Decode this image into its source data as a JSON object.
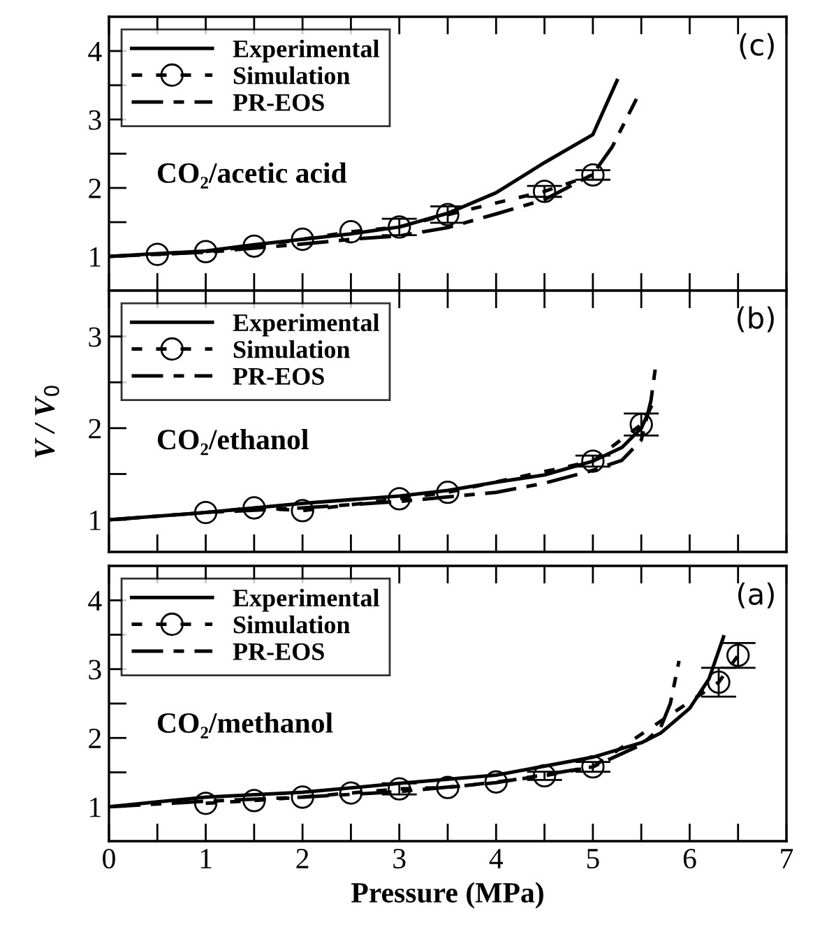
{
  "chart_data": [
    {
      "type": "line",
      "annotations": [
        "(c)",
        "CO₂/acetic acid"
      ],
      "legend": "top left",
      "tick_labels": "y",
      "grid": false,
      "xlim": [
        0,
        7
      ],
      "xticks": [
        {
          "value": 0,
          "label": null
        },
        {
          "value": 0.5,
          "label": null
        },
        {
          "value": 1,
          "label": null
        },
        {
          "value": 1.5,
          "label": null
        },
        {
          "value": 2,
          "label": null
        },
        {
          "value": 2.5,
          "label": null
        },
        {
          "value": 3,
          "label": null
        },
        {
          "value": 3.5,
          "label": null
        },
        {
          "value": 4,
          "label": null
        },
        {
          "value": 4.5,
          "label": null
        },
        {
          "value": 5,
          "label": null
        },
        {
          "value": 5.5,
          "label": null
        },
        {
          "value": 6,
          "label": null
        },
        {
          "value": 6.5,
          "label": null
        },
        {
          "value": 7,
          "label": null
        }
      ],
      "ylim": [
        0.5,
        4.5
      ],
      "yticks": [
        1,
        {
          "value": 1.5,
          "label": null
        },
        2,
        {
          "value": 2.5,
          "label": null
        },
        3,
        {
          "value": 3.5,
          "label": null
        },
        4
      ],
      "series": [
        {
          "name": "Experimental",
          "color": "#000000",
          "line_style": "solid",
          "marker": "none",
          "x": [
            0,
            1,
            1.5,
            2,
            2.5,
            3,
            3.5,
            4,
            4.5,
            5,
            5.25
          ],
          "values": [
            1,
            1.08,
            1.17,
            1.25,
            1.33,
            1.43,
            1.63,
            1.93,
            2.37,
            2.78,
            3.57
          ]
        },
        {
          "name": "Simulation",
          "color": "#000000",
          "line_style": "dotted",
          "marker": "circle",
          "x": [
            0.5,
            1,
            1.5,
            2,
            2.5,
            3,
            3.5,
            4.5,
            5
          ],
          "values": [
            1.03,
            1.07,
            1.15,
            1.25,
            1.36,
            1.43,
            1.61,
            1.95,
            2.19
          ],
          "errors": [
            null,
            null,
            null,
            null,
            null,
            0.12,
            0.12,
            0.08,
            0.07
          ]
        },
        {
          "name": "PR-EOS",
          "color": "#000000",
          "line_style": "dashed",
          "marker": "none",
          "x": [
            0,
            1,
            2,
            2.5,
            3,
            3.5,
            4,
            4.5,
            5,
            5.2,
            5.45
          ],
          "values": [
            1,
            1.06,
            1.18,
            1.25,
            1.3,
            1.42,
            1.62,
            1.83,
            2.2,
            2.6,
            3.3
          ]
        }
      ]
    },
    {
      "type": "line",
      "annotations": [
        "(b)",
        "CO₂/ethanol"
      ],
      "legend": "top left",
      "tick_labels": "y",
      "grid": false,
      "ylabel": "V / V$_{0}$",
      "xlim": [
        0,
        7
      ],
      "xticks": [
        {
          "value": 0,
          "label": null
        },
        {
          "value": 0.5,
          "label": null
        },
        {
          "value": 1,
          "label": null
        },
        {
          "value": 1.5,
          "label": null
        },
        {
          "value": 2,
          "label": null
        },
        {
          "value": 2.5,
          "label": null
        },
        {
          "value": 3,
          "label": null
        },
        {
          "value": 3.5,
          "label": null
        },
        {
          "value": 4,
          "label": null
        },
        {
          "value": 4.5,
          "label": null
        },
        {
          "value": 5,
          "label": null
        },
        {
          "value": 5.5,
          "label": null
        },
        {
          "value": 6,
          "label": null
        },
        {
          "value": 6.5,
          "label": null
        },
        {
          "value": 7,
          "label": null
        }
      ],
      "ylim": [
        0.65,
        3.5
      ],
      "yticks": [
        1,
        {
          "value": 1.5,
          "label": null
        },
        2,
        {
          "value": 2.5,
          "label": null
        },
        3
      ],
      "series": [
        {
          "name": "Experimental",
          "color": "#000000",
          "line_style": "solid",
          "marker": "none",
          "x": [
            0,
            1,
            2,
            3,
            3.5,
            4,
            4.5,
            5,
            5.3,
            5.5,
            5.6
          ],
          "values": [
            1,
            1.08,
            1.18,
            1.26,
            1.32,
            1.41,
            1.49,
            1.64,
            1.79,
            2.0,
            2.23
          ]
        },
        {
          "name": "Simulation",
          "color": "#000000",
          "line_style": "dotted",
          "marker": "circle",
          "x": [
            1,
            1.5,
            2,
            3,
            3.5,
            5,
            5.5
          ],
          "values": [
            1.08,
            1.13,
            1.1,
            1.23,
            1.3,
            1.64,
            2.04
          ],
          "errors": [
            null,
            null,
            null,
            null,
            null,
            0.06,
            0.12
          ]
        },
        {
          "name": "PR-EOS",
          "color": "#000000",
          "line_style": "dashed",
          "marker": "none",
          "x": [
            0,
            1,
            2,
            3,
            3.5,
            4,
            4.5,
            5,
            5.3,
            5.5,
            5.6,
            5.65
          ],
          "values": [
            1,
            1.08,
            1.13,
            1.2,
            1.25,
            1.3,
            1.4,
            1.54,
            1.65,
            1.87,
            2.3,
            2.69
          ]
        }
      ]
    },
    {
      "type": "line",
      "annotations": [
        "(a)",
        "CO₂/methanol"
      ],
      "legend": "top left",
      "grid": false,
      "xlabel": "Pressure (MPa)",
      "xlim": [
        0,
        7
      ],
      "xticks": [
        0,
        {
          "value": 0.5,
          "label": null
        },
        1,
        {
          "value": 1.5,
          "label": null
        },
        2,
        {
          "value": 2.5,
          "label": null
        },
        3,
        {
          "value": 3.5,
          "label": null
        },
        4,
        {
          "value": 4.5,
          "label": null
        },
        5,
        {
          "value": 5.5,
          "label": null
        },
        6,
        {
          "value": 6.5,
          "label": null
        },
        7
      ],
      "ylim": [
        0.5,
        4.5
      ],
      "yticks": [
        1,
        {
          "value": 1.5,
          "label": null
        },
        2,
        {
          "value": 2.5,
          "label": null
        },
        3,
        {
          "value": 3.5,
          "label": null
        },
        4
      ],
      "series": [
        {
          "name": "Experimental",
          "color": "#000000",
          "line_style": "solid",
          "marker": "none",
          "x": [
            0,
            0.5,
            1,
            2,
            3,
            4,
            5,
            5.5,
            5.7,
            6,
            6.2,
            6.35
          ],
          "values": [
            1,
            1.07,
            1.14,
            1.21,
            1.34,
            1.46,
            1.72,
            1.93,
            2.07,
            2.43,
            2.86,
            3.47
          ]
        },
        {
          "name": "Simulation",
          "color": "#000000",
          "line_style": "dotted",
          "marker": "circle",
          "x": [
            1,
            1.5,
            2,
            2.5,
            3,
            3.5,
            4,
            4.5,
            5,
            6.3,
            6.5
          ],
          "values": [
            1.05,
            1.09,
            1.14,
            1.2,
            1.26,
            1.28,
            1.36,
            1.45,
            1.58,
            2.81,
            3.2
          ],
          "errors": [
            null,
            null,
            null,
            null,
            0.08,
            null,
            null,
            0.06,
            0.07,
            0.21,
            0.18
          ]
        },
        {
          "name": "PR-EOS",
          "color": "#000000",
          "line_style": "dashed",
          "marker": "none",
          "x": [
            0,
            1,
            2,
            3,
            4,
            5,
            5.5,
            5.7,
            5.8,
            5.89
          ],
          "values": [
            1,
            1.08,
            1.14,
            1.22,
            1.35,
            1.58,
            1.9,
            2.15,
            2.5,
            3.12
          ]
        }
      ]
    }
  ]
}
